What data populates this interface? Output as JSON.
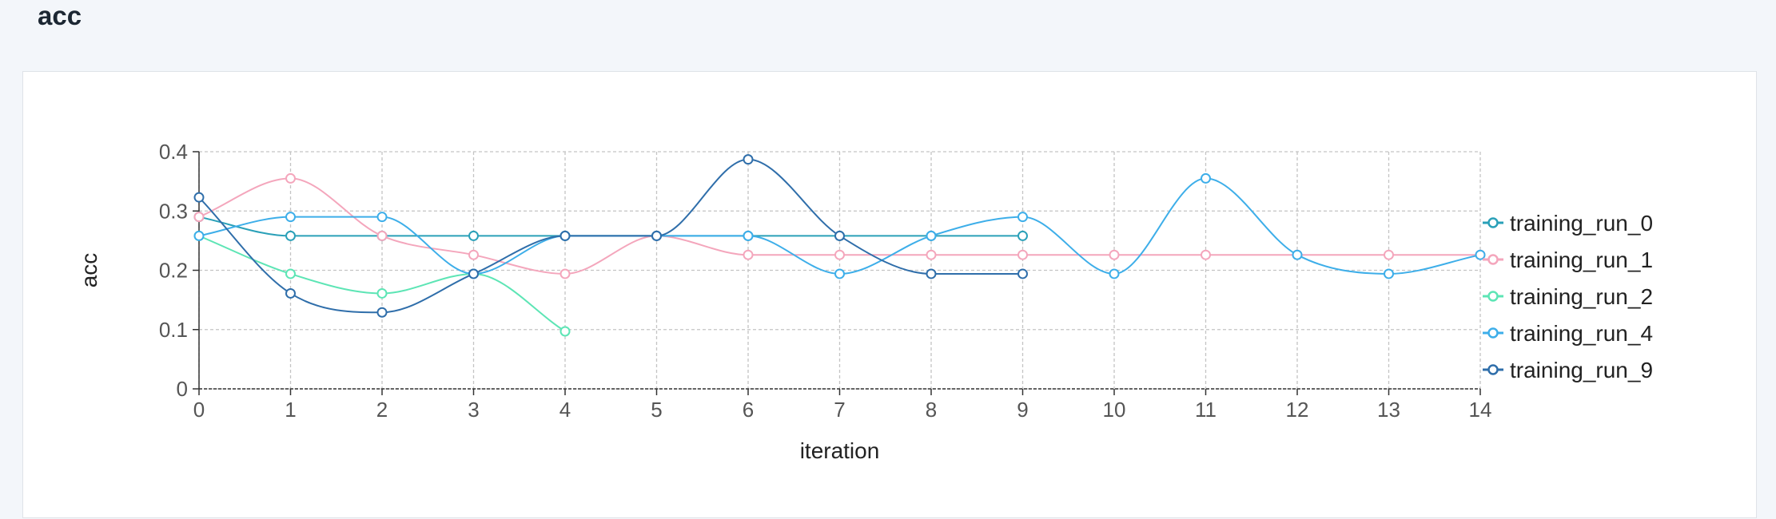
{
  "header": {
    "title": "acc"
  },
  "chart_data": {
    "type": "line",
    "title": "",
    "xlabel": "iteration",
    "ylabel": "acc",
    "xlim": [
      0,
      14
    ],
    "ylim": [
      0,
      0.4
    ],
    "x_ticks": [
      0,
      1,
      2,
      3,
      4,
      5,
      6,
      7,
      8,
      9,
      10,
      11,
      12,
      13,
      14
    ],
    "y_ticks": [
      0,
      0.1,
      0.2,
      0.3,
      0.4
    ],
    "grid": true,
    "legend_position": "right",
    "series": [
      {
        "name": "training_run_0",
        "color": "#2aa0b8",
        "x": [
          0,
          1,
          2,
          3,
          4,
          5,
          6,
          7,
          8,
          9
        ],
        "y": [
          0.29,
          0.258,
          0.258,
          0.258,
          0.258,
          0.258,
          0.258,
          0.258,
          0.258,
          0.258
        ]
      },
      {
        "name": "training_run_1",
        "color": "#f4a6bc",
        "x": [
          0,
          1,
          2,
          3,
          4,
          5,
          6,
          7,
          8,
          9,
          10,
          11,
          12,
          13,
          14
        ],
        "y": [
          0.29,
          0.355,
          0.258,
          0.226,
          0.194,
          0.258,
          0.226,
          0.226,
          0.226,
          0.226,
          0.226,
          0.226,
          0.226,
          0.226,
          0.226
        ]
      },
      {
        "name": "training_run_2",
        "color": "#5de5b5",
        "x": [
          0,
          1,
          2,
          3,
          4
        ],
        "y": [
          0.258,
          0.194,
          0.161,
          0.194,
          0.097
        ]
      },
      {
        "name": "training_run_4",
        "color": "#3daee9",
        "x": [
          0,
          1,
          2,
          3,
          4,
          5,
          6,
          7,
          8,
          9,
          10,
          11,
          12,
          13,
          14
        ],
        "y": [
          0.258,
          0.29,
          0.29,
          0.194,
          0.258,
          0.258,
          0.258,
          0.194,
          0.258,
          0.29,
          0.194,
          0.355,
          0.226,
          0.194,
          0.226
        ]
      },
      {
        "name": "training_run_9",
        "color": "#2f6eaa",
        "x": [
          0,
          1,
          2,
          3,
          4,
          5,
          6,
          7,
          8,
          9
        ],
        "y": [
          0.323,
          0.161,
          0.129,
          0.194,
          0.258,
          0.258,
          0.387,
          0.258,
          0.194,
          0.194
        ]
      }
    ]
  }
}
